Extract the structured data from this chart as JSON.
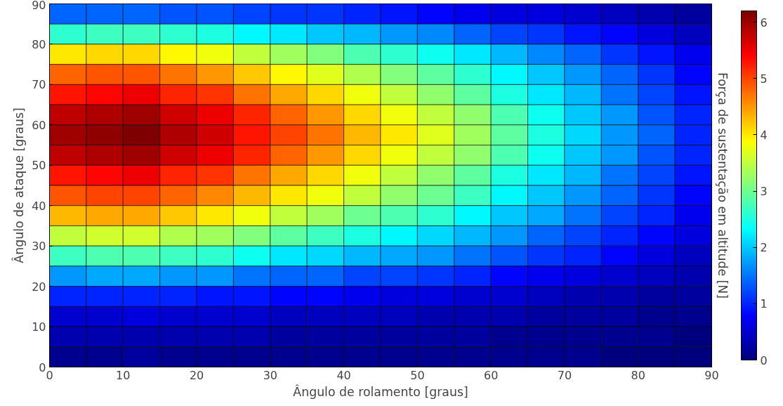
{
  "chart_data": {
    "type": "heatmap",
    "xlabel": "Ângulo de rolamento [graus]",
    "ylabel": "Ângulo de ataque [graus]",
    "clabel": "Força de sustentação em altitude [N]",
    "x": [
      2.5,
      7.5,
      12.5,
      17.5,
      22.5,
      27.5,
      32.5,
      37.5,
      42.5,
      47.5,
      52.5,
      57.5,
      62.5,
      67.5,
      72.5,
      77.5,
      82.5,
      87.5
    ],
    "y": [
      87.5,
      82.5,
      77.5,
      72.5,
      67.5,
      62.5,
      57.5,
      52.5,
      47.5,
      42.5,
      37.5,
      32.5,
      27.5,
      22.5,
      17.5,
      12.5,
      7.5,
      2.5
    ],
    "xlim": [
      0,
      90
    ],
    "xticks": [
      0,
      10,
      20,
      30,
      40,
      50,
      60,
      70,
      80,
      90
    ],
    "ylim": [
      0,
      90
    ],
    "yticks": [
      0,
      10,
      20,
      30,
      40,
      50,
      60,
      70,
      80,
      90
    ],
    "clim": [
      0,
      6.2
    ],
    "cticks": [
      0,
      1,
      2,
      3,
      4,
      5,
      6
    ],
    "grid": false,
    "cells": [
      [
        1.4,
        1.4,
        1.4,
        1.3,
        1.3,
        1.2,
        1.1,
        1.1,
        1.0,
        0.9,
        0.8,
        0.7,
        0.6,
        0.6,
        0.5,
        0.4,
        0.3,
        0.2
      ],
      [
        2.6,
        2.7,
        2.7,
        2.6,
        2.5,
        2.3,
        2.2,
        2.0,
        1.9,
        1.7,
        1.6,
        1.4,
        1.2,
        1.1,
        0.9,
        0.8,
        0.6,
        0.4
      ],
      [
        4.0,
        4.1,
        4.1,
        3.9,
        3.8,
        3.5,
        3.3,
        3.1,
        2.8,
        2.6,
        2.4,
        2.2,
        1.9,
        1.6,
        1.4,
        1.1,
        0.9,
        0.7
      ],
      [
        4.8,
        4.9,
        4.9,
        4.7,
        4.5,
        4.2,
        3.9,
        3.7,
        3.4,
        3.1,
        2.9,
        2.6,
        2.3,
        2.0,
        1.7,
        1.4,
        1.1,
        0.8
      ],
      [
        5.3,
        5.4,
        5.5,
        5.2,
        5.1,
        4.7,
        4.4,
        4.1,
        3.8,
        3.5,
        3.2,
        2.9,
        2.5,
        2.2,
        1.9,
        1.5,
        1.2,
        0.9
      ],
      [
        5.8,
        5.9,
        6.0,
        5.7,
        5.5,
        5.2,
        4.8,
        4.5,
        4.1,
        3.8,
        3.5,
        3.2,
        2.8,
        2.4,
        2.0,
        1.7,
        1.3,
        1.0
      ],
      [
        6.0,
        6.1,
        6.2,
        5.9,
        5.7,
        5.3,
        5.0,
        4.7,
        4.3,
        4.0,
        3.7,
        3.3,
        2.9,
        2.5,
        2.1,
        1.7,
        1.4,
        1.0
      ],
      [
        5.8,
        5.9,
        6.0,
        5.7,
        5.5,
        5.2,
        4.8,
        4.5,
        4.1,
        3.8,
        3.5,
        3.2,
        2.8,
        2.4,
        2.0,
        1.7,
        1.3,
        1.0
      ],
      [
        5.3,
        5.4,
        5.5,
        5.2,
        5.1,
        4.7,
        4.4,
        4.1,
        3.8,
        3.5,
        3.2,
        2.9,
        2.5,
        2.2,
        1.9,
        1.5,
        1.2,
        0.9
      ],
      [
        4.9,
        5.0,
        5.0,
        4.8,
        4.6,
        4.3,
        4.0,
        3.8,
        3.5,
        3.2,
        3.0,
        2.7,
        2.3,
        2.0,
        1.7,
        1.4,
        1.1,
        0.8
      ],
      [
        4.3,
        4.4,
        4.4,
        4.2,
        4.0,
        3.8,
        3.5,
        3.3,
        3.0,
        2.8,
        2.6,
        2.3,
        2.0,
        1.8,
        1.5,
        1.2,
        1.0,
        0.7
      ],
      [
        3.5,
        3.6,
        3.6,
        3.4,
        3.3,
        3.1,
        2.9,
        2.7,
        2.5,
        2.3,
        2.1,
        1.9,
        1.7,
        1.4,
        1.2,
        1.0,
        0.8,
        0.6
      ],
      [
        2.7,
        2.8,
        2.8,
        2.7,
        2.6,
        2.4,
        2.2,
        2.1,
        1.9,
        1.8,
        1.7,
        1.5,
        1.3,
        1.1,
        1.0,
        0.8,
        0.6,
        0.4
      ],
      [
        1.7,
        1.8,
        1.8,
        1.7,
        1.7,
        1.5,
        1.4,
        1.4,
        1.2,
        1.2,
        1.1,
        1.0,
        0.8,
        0.7,
        0.6,
        0.5,
        0.4,
        0.3
      ],
      [
        1.0,
        1.0,
        1.0,
        1.0,
        0.9,
        0.9,
        0.8,
        0.8,
        0.7,
        0.6,
        0.6,
        0.5,
        0.5,
        0.4,
        0.3,
        0.3,
        0.2,
        0.2
      ],
      [
        0.5,
        0.5,
        0.6,
        0.5,
        0.5,
        0.5,
        0.4,
        0.4,
        0.4,
        0.4,
        0.3,
        0.3,
        0.3,
        0.2,
        0.2,
        0.2,
        0.1,
        0.1
      ],
      [
        0.3,
        0.3,
        0.3,
        0.3,
        0.3,
        0.3,
        0.2,
        0.2,
        0.2,
        0.2,
        0.2,
        0.2,
        0.1,
        0.1,
        0.1,
        0.1,
        0.1,
        0.0
      ],
      [
        0.1,
        0.1,
        0.2,
        0.1,
        0.1,
        0.1,
        0.1,
        0.1,
        0.1,
        0.1,
        0.1,
        0.1,
        0.1,
        0.1,
        0.1,
        0.0,
        0.0,
        0.0
      ]
    ]
  }
}
